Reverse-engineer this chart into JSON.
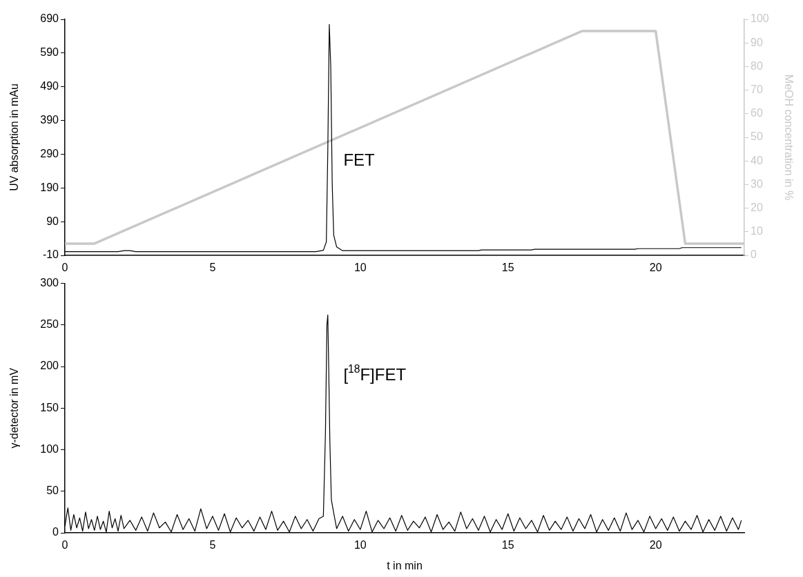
{
  "chart_data": [
    {
      "type": "line",
      "ylabel": "UV absorption in mAu",
      "y2label": "MeOH concentration in %",
      "xlim": [
        0,
        23
      ],
      "xticks": [
        0,
        5,
        10,
        15,
        20
      ],
      "ylim": [
        -10,
        690
      ],
      "yticks": [
        -10,
        90,
        190,
        290,
        390,
        490,
        590,
        690
      ],
      "y2lim": [
        0,
        100
      ],
      "y2ticks": [
        0,
        10,
        20,
        30,
        40,
        50,
        60,
        70,
        80,
        90,
        100
      ],
      "grid": false,
      "series": [
        {
          "color": "#000000",
          "x": [
            0,
            1.8,
            2.0,
            2.2,
            2.4,
            8.5,
            8.75,
            8.85,
            8.9,
            8.95,
            9.0,
            9.05,
            9.1,
            9.2,
            9.4,
            14,
            14.1,
            15.8,
            15.9,
            19.3,
            19.4,
            20.8,
            20.9,
            22.9
          ],
          "values": [
            1,
            1,
            4,
            4,
            1,
            1,
            5,
            30,
            300,
            675,
            550,
            200,
            50,
            15,
            4,
            4,
            6,
            6,
            8,
            8,
            10,
            10,
            13,
            13
          ]
        },
        {
          "color": "#c8c8c8",
          "axis": "y2",
          "x": [
            0,
            1,
            17.5,
            20,
            21,
            23
          ],
          "values": [
            5,
            5,
            95,
            95,
            5,
            5
          ]
        }
      ],
      "annotations": [
        "FET"
      ]
    },
    {
      "type": "line",
      "ylabel": "γ-detector in mV",
      "xlabel": "t in min",
      "xlim": [
        0,
        23
      ],
      "xticks": [
        0,
        5,
        10,
        15,
        20
      ],
      "ylim": [
        0,
        300
      ],
      "yticks": [
        0,
        50,
        100,
        150,
        200,
        250,
        300
      ],
      "grid": false,
      "series": [
        {
          "color": "#000000",
          "x": [
            0,
            0.1,
            0.2,
            0.3,
            0.4,
            0.5,
            0.6,
            0.7,
            0.8,
            0.9,
            1.0,
            1.1,
            1.2,
            1.3,
            1.4,
            1.5,
            1.6,
            1.7,
            1.8,
            1.9,
            2.0,
            2.2,
            2.4,
            2.6,
            2.8,
            3.0,
            3.2,
            3.4,
            3.6,
            3.8,
            4.0,
            4.2,
            4.4,
            4.6,
            4.8,
            5.0,
            5.2,
            5.4,
            5.6,
            5.8,
            6.0,
            6.2,
            6.4,
            6.6,
            6.8,
            7.0,
            7.2,
            7.4,
            7.6,
            7.8,
            8.0,
            8.2,
            8.4,
            8.6,
            8.75,
            8.82,
            8.87,
            8.9,
            8.93,
            8.97,
            9.02,
            9.1,
            9.2,
            9.4,
            9.6,
            9.8,
            10.0,
            10.2,
            10.4,
            10.6,
            10.8,
            11.0,
            11.2,
            11.4,
            11.6,
            11.8,
            12.0,
            12.2,
            12.4,
            12.6,
            12.8,
            13.0,
            13.2,
            13.4,
            13.6,
            13.8,
            14.0,
            14.2,
            14.4,
            14.6,
            14.8,
            15.0,
            15.2,
            15.4,
            15.6,
            15.8,
            16.0,
            16.2,
            16.4,
            16.6,
            16.8,
            17.0,
            17.2,
            17.4,
            17.6,
            17.8,
            18.0,
            18.2,
            18.4,
            18.6,
            18.8,
            19.0,
            19.2,
            19.4,
            19.6,
            19.8,
            20.0,
            20.2,
            20.4,
            20.6,
            20.8,
            21.0,
            21.2,
            21.4,
            21.6,
            21.8,
            22.0,
            22.2,
            22.4,
            22.6,
            22.8,
            22.9
          ],
          "values": [
            8,
            30,
            3,
            22,
            6,
            18,
            2,
            25,
            5,
            16,
            3,
            20,
            4,
            14,
            1,
            26,
            6,
            17,
            2,
            21,
            5,
            15,
            3,
            19,
            2,
            24,
            6,
            13,
            1,
            22,
            4,
            17,
            2,
            29,
            5,
            20,
            3,
            23,
            1,
            18,
            6,
            15,
            2,
            19,
            4,
            26,
            3,
            14,
            1,
            20,
            5,
            16,
            2,
            17,
            20,
            120,
            250,
            262,
            200,
            110,
            40,
            24,
            5,
            20,
            2,
            16,
            4,
            26,
            1,
            15,
            5,
            18,
            2,
            21,
            3,
            14,
            6,
            19,
            1,
            22,
            4,
            13,
            2,
            25,
            5,
            17,
            3,
            20,
            1,
            16,
            4,
            23,
            2,
            18,
            5,
            15,
            1,
            21,
            3,
            14,
            4,
            19,
            2,
            17,
            5,
            22,
            1,
            16,
            3,
            18,
            2,
            24,
            4,
            15,
            1,
            20,
            5,
            17,
            3,
            19,
            2,
            14,
            4,
            21,
            1,
            16,
            3,
            20,
            2,
            18,
            4,
            15
          ]
        }
      ],
      "annotations": [
        "[$^{18}$F]FET"
      ]
    }
  ]
}
